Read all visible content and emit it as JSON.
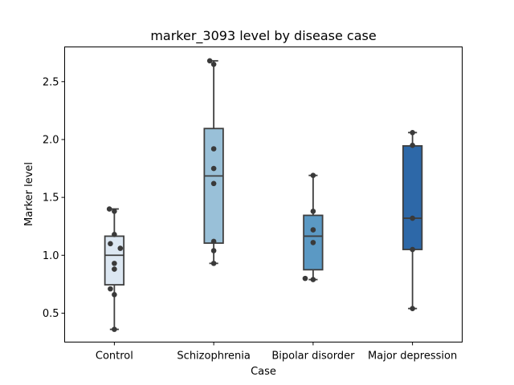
{
  "chart_data": {
    "type": "box",
    "title": "marker_3093 level by disease case",
    "xlabel": "Case",
    "ylabel": "Marker level",
    "ylim": [
      0.25,
      2.8
    ],
    "yticks": [
      "0.5",
      "1.0",
      "1.5",
      "2.0",
      "2.5"
    ],
    "grid": false,
    "categories": [
      "Control",
      "Schizophrenia",
      "Bipolar disorder",
      "Major depression"
    ],
    "colors": [
      "#dce7f2",
      "#99c0d8",
      "#5b99c4",
      "#2d68a8"
    ],
    "boxes": [
      {
        "whisker_low": 0.36,
        "q1": 0.745,
        "median": 1.0,
        "q3": 1.165,
        "whisker_high": 1.4
      },
      {
        "whisker_low": 0.93,
        "q1": 1.105,
        "median": 1.685,
        "q3": 2.095,
        "whisker_high": 2.68
      },
      {
        "whisker_low": 0.79,
        "q1": 0.875,
        "median": 1.165,
        "q3": 1.345,
        "whisker_high": 1.69
      },
      {
        "whisker_low": 0.54,
        "q1": 1.05,
        "median": 1.32,
        "q3": 1.945,
        "whisker_high": 2.06
      }
    ],
    "points": [
      [
        {
          "offset": -0.05,
          "y": 1.4
        },
        {
          "offset": 0.0,
          "y": 1.38
        },
        {
          "offset": 0.0,
          "y": 1.18
        },
        {
          "offset": -0.04,
          "y": 1.1
        },
        {
          "offset": 0.06,
          "y": 1.06
        },
        {
          "offset": 0.0,
          "y": 0.93
        },
        {
          "offset": 0.0,
          "y": 0.88
        },
        {
          "offset": -0.04,
          "y": 0.71
        },
        {
          "offset": 0.0,
          "y": 0.66
        },
        {
          "offset": 0.0,
          "y": 0.36
        }
      ],
      [
        {
          "offset": -0.04,
          "y": 2.68
        },
        {
          "offset": 0.0,
          "y": 2.65
        },
        {
          "offset": 0.0,
          "y": 1.92
        },
        {
          "offset": 0.0,
          "y": 1.75
        },
        {
          "offset": 0.0,
          "y": 1.62
        },
        {
          "offset": 0.0,
          "y": 1.12
        },
        {
          "offset": 0.0,
          "y": 1.04
        },
        {
          "offset": 0.0,
          "y": 0.93
        }
      ],
      [
        {
          "offset": 0.0,
          "y": 1.69
        },
        {
          "offset": 0.0,
          "y": 1.38
        },
        {
          "offset": 0.0,
          "y": 1.22
        },
        {
          "offset": 0.0,
          "y": 1.11
        },
        {
          "offset": -0.08,
          "y": 0.8
        },
        {
          "offset": 0.0,
          "y": 0.79
        }
      ],
      [
        {
          "offset": 0.0,
          "y": 2.06
        },
        {
          "offset": 0.0,
          "y": 1.95
        },
        {
          "offset": 0.0,
          "y": 1.32
        },
        {
          "offset": 0.0,
          "y": 1.05
        },
        {
          "offset": 0.0,
          "y": 0.54
        }
      ]
    ]
  }
}
